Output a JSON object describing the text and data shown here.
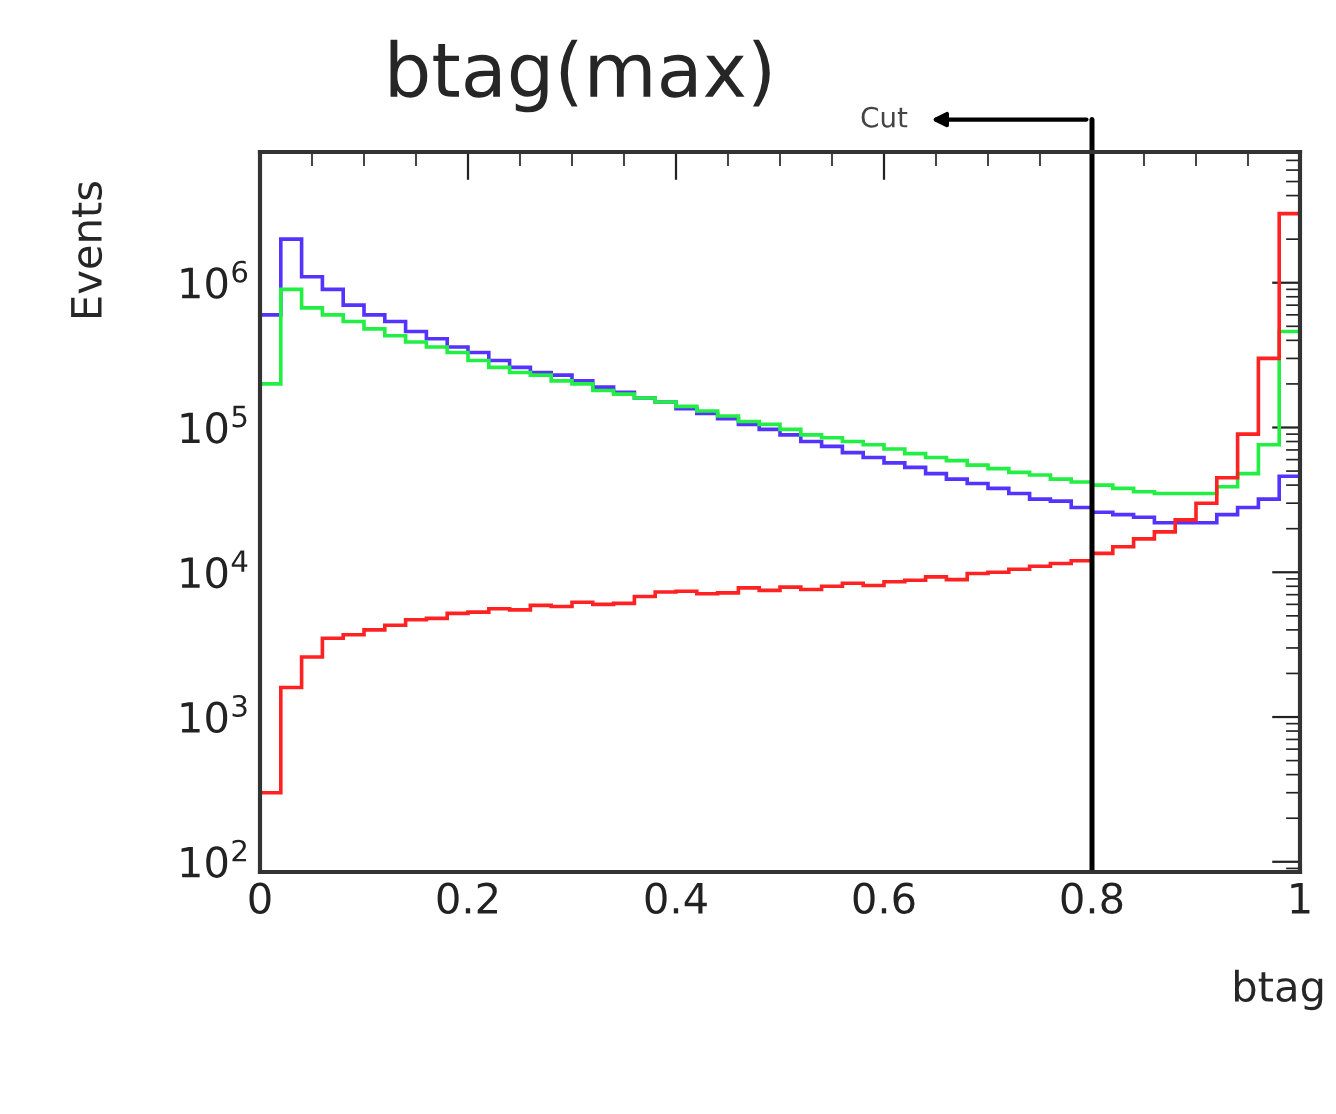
{
  "chart_data": {
    "type": "histogram",
    "title": "btag(max)",
    "xlabel": "btag",
    "ylabel": "Events",
    "bins": [
      0,
      0.02,
      0.04,
      0.06,
      0.08,
      0.1,
      0.12,
      0.14,
      0.16,
      0.18,
      0.2,
      0.22,
      0.24,
      0.26,
      0.28,
      0.3,
      0.32,
      0.34,
      0.36,
      0.38,
      0.4,
      0.42,
      0.44,
      0.46,
      0.48,
      0.5,
      0.52,
      0.54,
      0.56,
      0.58,
      0.6,
      0.62,
      0.64,
      0.66,
      0.68,
      0.7,
      0.72,
      0.74,
      0.76,
      0.78,
      0.8,
      0.82,
      0.84,
      0.86,
      0.88,
      0.9,
      0.92,
      0.94,
      0.96,
      0.98,
      1
    ],
    "series": [
      {
        "color": "#5533ff",
        "values": [
          600000,
          2000000,
          1100000,
          900000,
          700000,
          600000,
          540000,
          460000,
          410000,
          360000,
          330000,
          290000,
          260000,
          240000,
          230000,
          210000,
          190000,
          175000,
          160000,
          150000,
          135000,
          125000,
          115000,
          105000,
          97000,
          89000,
          80000,
          74000,
          67000,
          62000,
          57000,
          53000,
          48000,
          44000,
          41000,
          38000,
          35000,
          32000,
          31000,
          28000,
          26000,
          25000,
          24000,
          22000,
          22000,
          22000,
          25000,
          28000,
          32000,
          46000
        ]
      },
      {
        "color": "#22ee44",
        "values": [
          200000,
          900000,
          670000,
          600000,
          540000,
          480000,
          430000,
          390000,
          360000,
          330000,
          290000,
          260000,
          240000,
          230000,
          210000,
          200000,
          180000,
          170000,
          160000,
          150000,
          140000,
          130000,
          120000,
          110000,
          105000,
          97000,
          89000,
          85000,
          80000,
          76000,
          71000,
          66000,
          62000,
          59000,
          55000,
          52000,
          49000,
          47000,
          44000,
          42000,
          40000,
          38000,
          36000,
          35000,
          35000,
          35000,
          39000,
          48000,
          76000,
          460000
        ]
      },
      {
        "color": "#ff2222",
        "values": [
          300,
          1600,
          2600,
          3500,
          3700,
          4000,
          4300,
          4700,
          4800,
          5200,
          5300,
          5600,
          5500,
          5900,
          5800,
          6200,
          6000,
          6100,
          6800,
          7300,
          7400,
          7100,
          7200,
          7800,
          7500,
          7900,
          7600,
          8000,
          8400,
          8100,
          8600,
          8800,
          9300,
          8900,
          9800,
          10000,
          10500,
          11000,
          11500,
          12000,
          13500,
          15000,
          17000,
          19000,
          23000,
          30000,
          45000,
          90000,
          300000,
          3000000
        ]
      }
    ],
    "log": "y",
    "xlim": [
      0,
      1
    ],
    "xticks": [
      0,
      0.2,
      0.4,
      0.6,
      0.8,
      1
    ],
    "ylim": [
      85,
      8000000
    ],
    "yticks": [
      {
        "value": 100,
        "label": "10$^{2}$"
      },
      {
        "value": 1000,
        "label": "10$^{3}$"
      },
      {
        "value": 10000,
        "label": "10$^{4}$"
      },
      {
        "value": 100000,
        "label": "10$^{5}$"
      },
      {
        "value": 1000000,
        "label": "10$^{6}$"
      }
    ],
    "ref_lines": [
      {
        "axis": "x",
        "value": 0.8,
        "label": "Cut",
        "color": "#000000"
      }
    ],
    "grid": false
  }
}
